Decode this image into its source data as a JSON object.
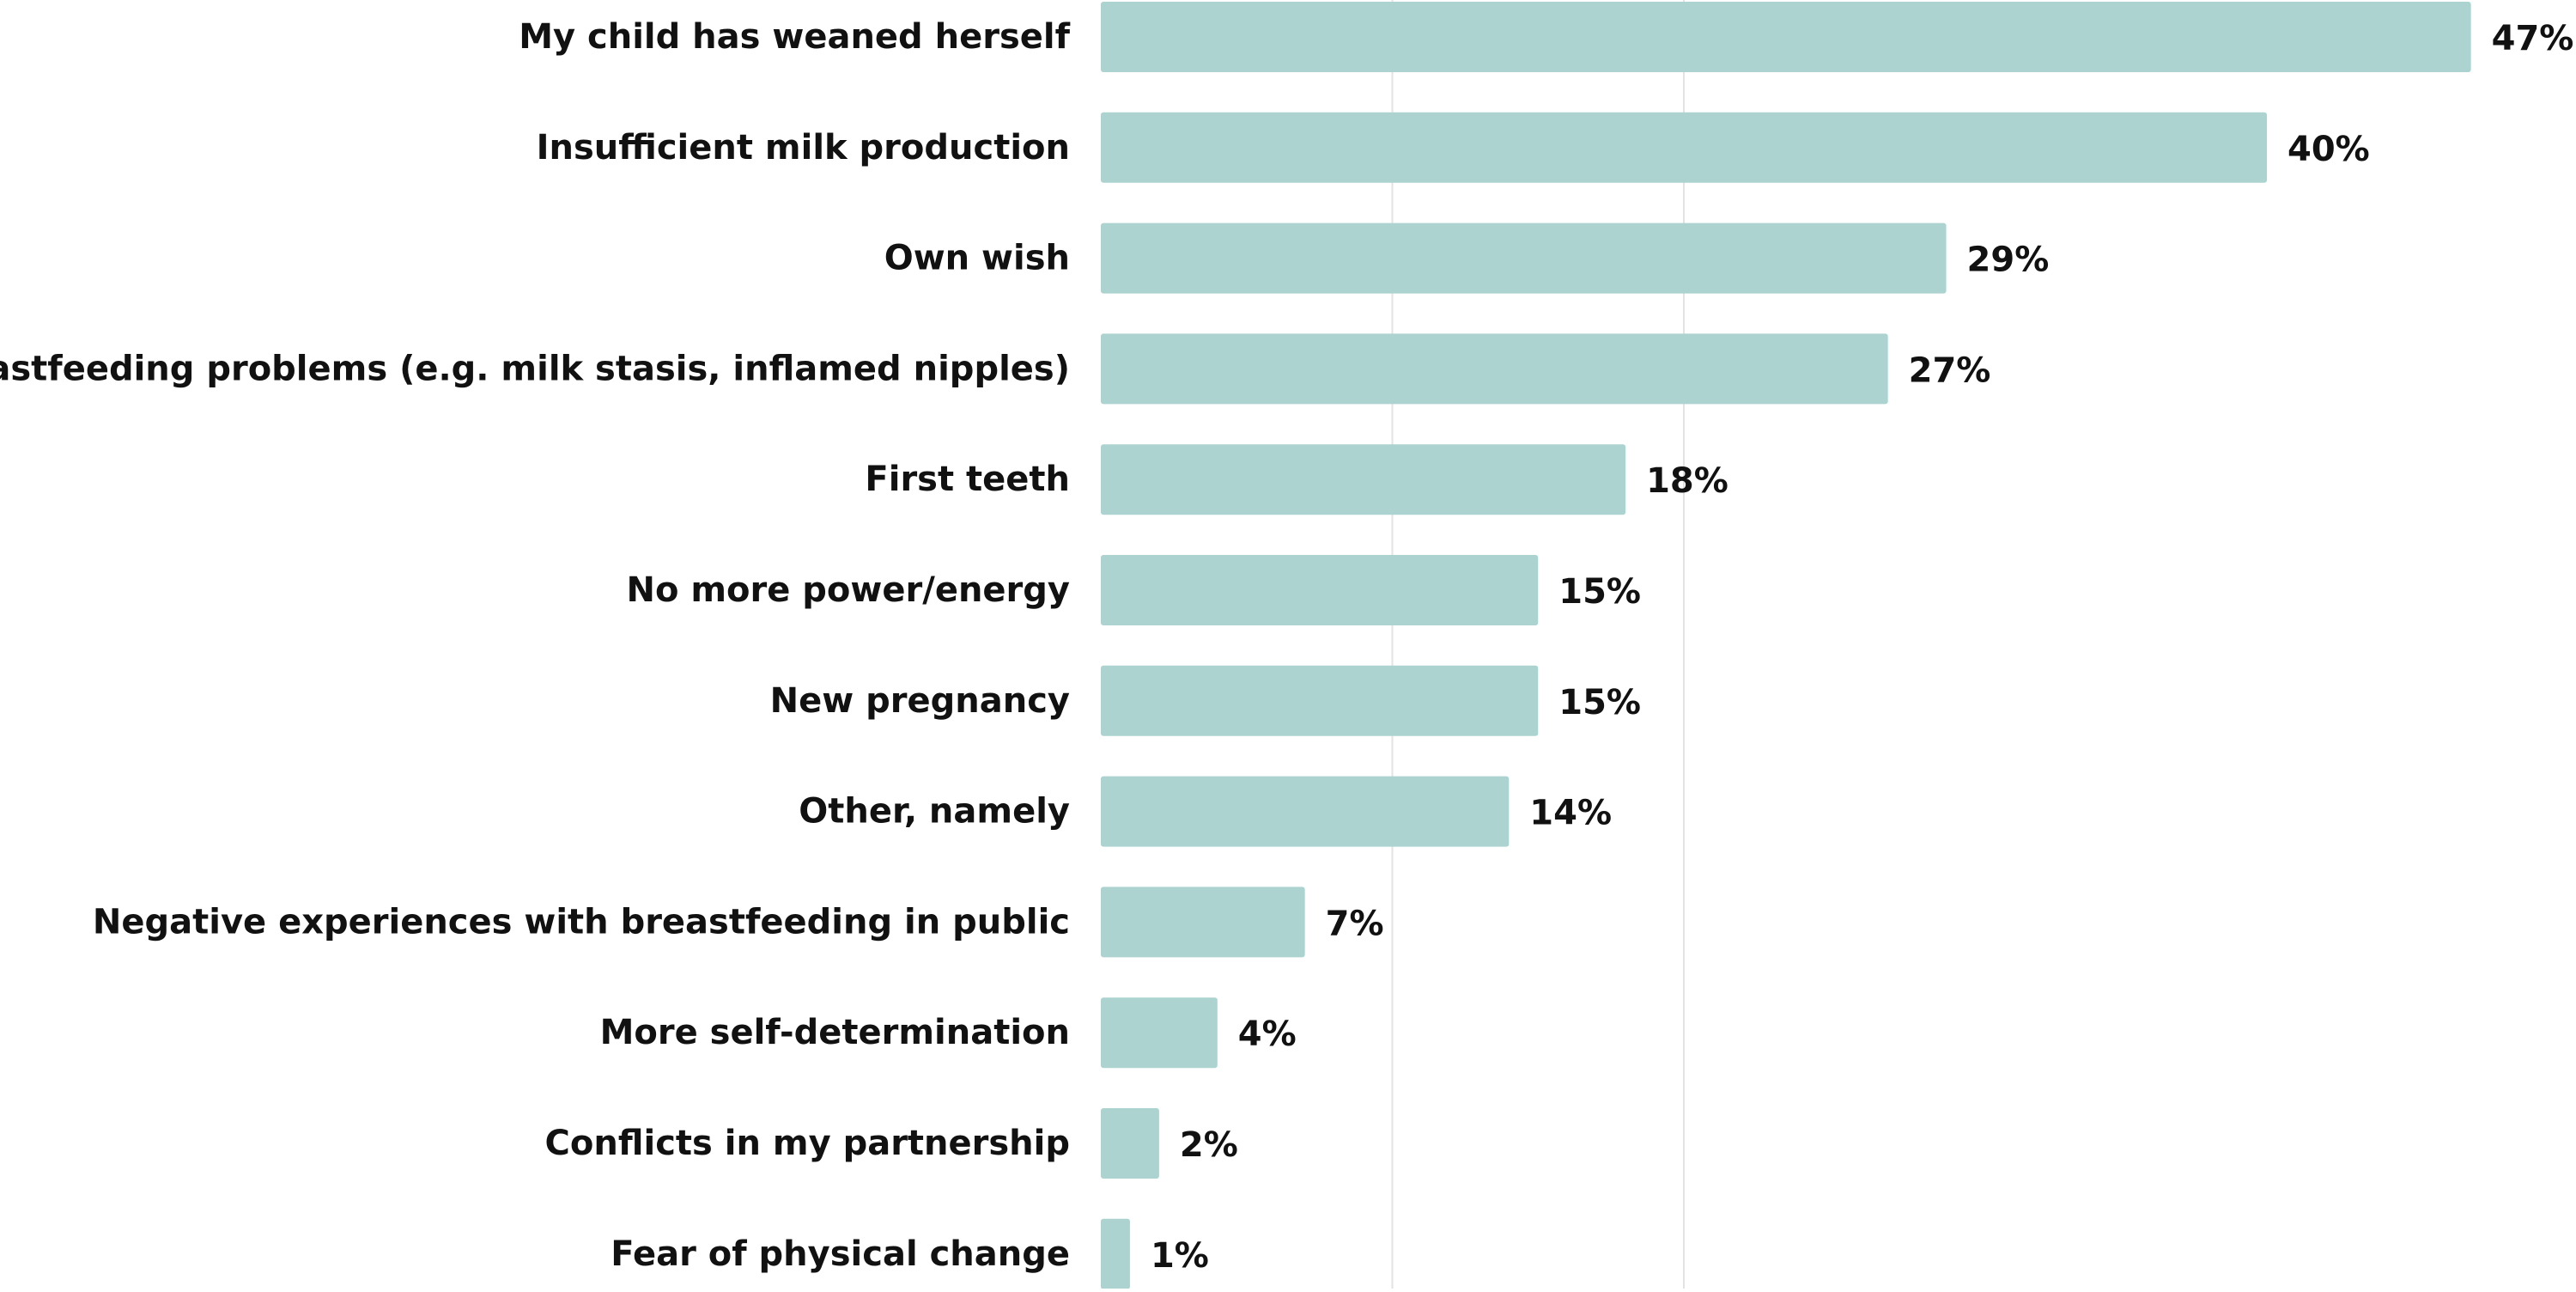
{
  "chart_data": {
    "type": "bar",
    "orientation": "horizontal",
    "categories": [
      "My child has weaned herself",
      "Insufficient milk production",
      "Own wish",
      "Breastfeeding problems (e.g. milk stasis, inflamed nipples)",
      "First teeth",
      "No more power/energy",
      "New pregnancy",
      "Other, namely",
      "Negative experiences with breastfeeding in public",
      "More self-determination",
      "Conflicts in my partnership",
      "Fear of physical change"
    ],
    "values": [
      47,
      40,
      29,
      27,
      18,
      15,
      15,
      14,
      7,
      4,
      2,
      1
    ],
    "value_labels": [
      "47%",
      "40%",
      "29%",
      "27%",
      "18%",
      "15%",
      "15%",
      "14%",
      "7%",
      "4%",
      "2%",
      "1%"
    ],
    "xlim": [
      0,
      50
    ],
    "grid": true,
    "colors": {
      "bar": "#acd3d0",
      "grid": "#e3e3e3",
      "text": "#111111"
    }
  }
}
